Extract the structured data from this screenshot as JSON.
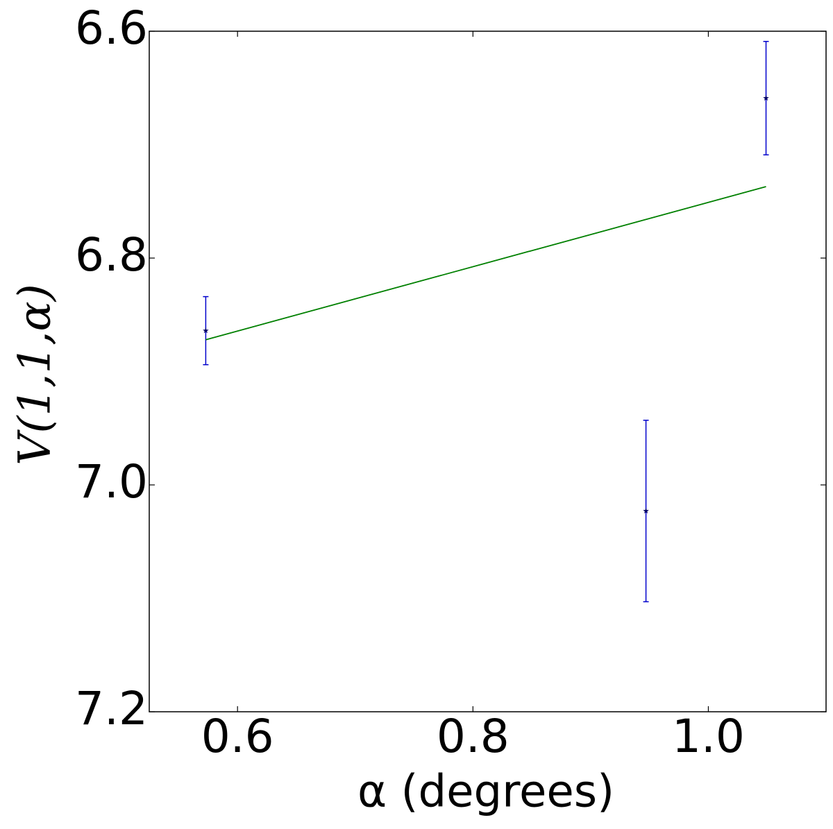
{
  "chart_data": {
    "type": "scatter",
    "x_label": "α (degrees)",
    "y_label": "V(1,1,α)",
    "xlim": [
      0.525,
      1.1
    ],
    "xticks": [
      0.6,
      0.8,
      {
        "value": 1.0,
        "label": "1.0"
      }
    ],
    "ylim": [
      6.6,
      7.2
    ],
    "y_inverted": true,
    "yticks": [
      6.6,
      6.8,
      {
        "value": 7.0,
        "label": "7.0"
      },
      7.2
    ],
    "series": [
      {
        "type": "errorbar",
        "color": "#0000cc",
        "marker_color": "#000066",
        "x": [
          0.573,
          0.947,
          1.049
        ],
        "values": [
          6.864,
          7.023,
          6.659
        ],
        "errors": [
          0.03,
          0.08,
          0.05
        ]
      },
      {
        "type": "line",
        "color": "#008000",
        "x": [
          0.573,
          1.049
        ],
        "values": [
          6.872,
          6.737
        ]
      }
    ]
  }
}
